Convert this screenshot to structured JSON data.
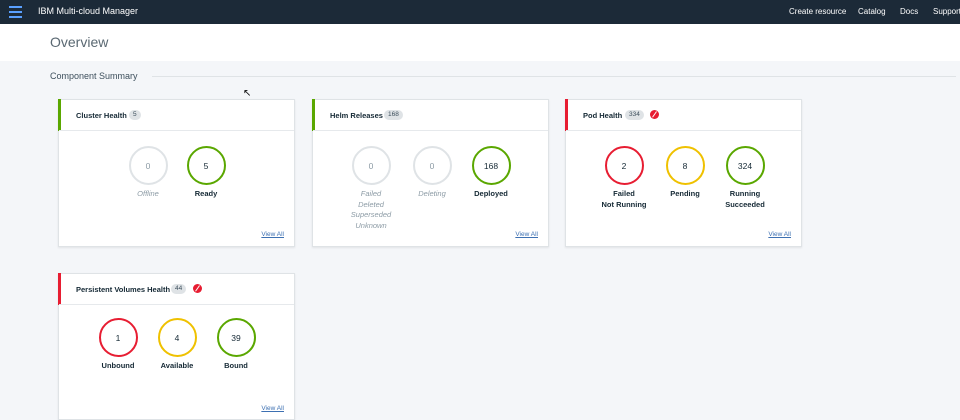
{
  "header": {
    "app_title": "IBM Multi-cloud Manager",
    "nav": [
      "Create resource",
      "Catalog",
      "Docs",
      "Support"
    ]
  },
  "page": {
    "title": "Overview",
    "section_title": "Component Summary"
  },
  "colors": {
    "healthy": "#5aa700",
    "error": "#e71d32",
    "warning": "#efc100",
    "neutral": "#dfe3e6"
  },
  "cards": {
    "cluster": {
      "title": "Cluster Health",
      "count": "5",
      "view_all": "View All",
      "stats": [
        {
          "value": "0",
          "label": "Offline"
        },
        {
          "value": "5",
          "label": "Ready"
        }
      ]
    },
    "helm": {
      "title": "Helm Releases",
      "count": "168",
      "view_all": "View All",
      "stats": [
        {
          "value": "0",
          "label": "Failed\nDeleted\nSuperseded\nUnknown"
        },
        {
          "value": "0",
          "label": "Deleting"
        },
        {
          "value": "168",
          "label": "Deployed"
        }
      ]
    },
    "pod": {
      "title": "Pod Health",
      "count": "334",
      "view_all": "View All",
      "stats": [
        {
          "value": "2",
          "label": "Failed\nNot Running"
        },
        {
          "value": "8",
          "label": "Pending"
        },
        {
          "value": "324",
          "label": "Running\nSucceeded"
        }
      ]
    },
    "pv": {
      "title": "Persistent Volumes Health",
      "count": "44",
      "view_all": "View All",
      "stats": [
        {
          "value": "1",
          "label": "Unbound"
        },
        {
          "value": "4",
          "label": "Available"
        },
        {
          "value": "39",
          "label": "Bound"
        }
      ]
    }
  }
}
